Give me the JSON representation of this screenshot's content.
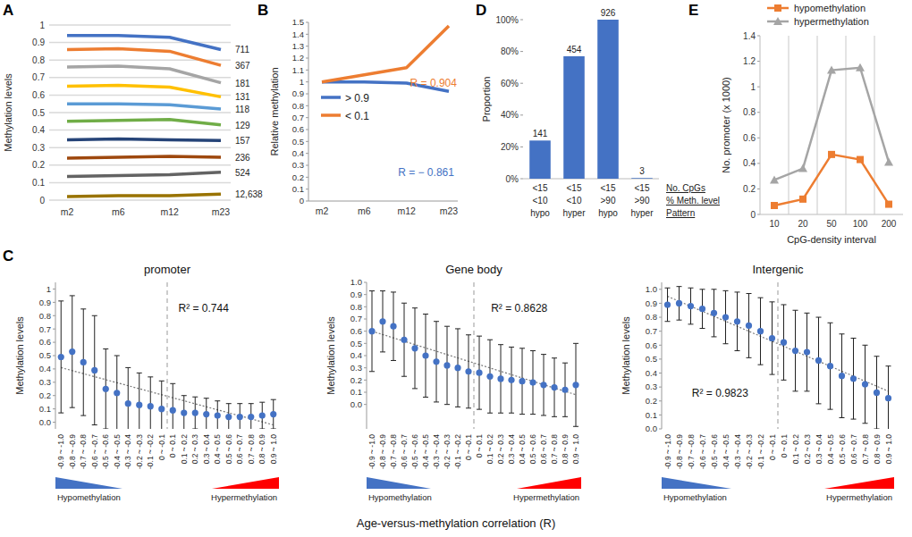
{
  "chart_data": [
    {
      "panel": "A",
      "type": "line",
      "ylabel": "Methylation levels",
      "categories": [
        "m2",
        "m6",
        "m12",
        "m23"
      ],
      "ylim": [
        0,
        1
      ],
      "yticks": [
        0,
        0.1,
        0.2,
        0.3,
        0.4,
        0.5,
        0.6,
        0.7,
        0.8,
        0.9,
        1
      ],
      "grid": true,
      "series": [
        {
          "name": "711",
          "color": "#4472c4",
          "values": [
            0.94,
            0.94,
            0.93,
            0.86
          ]
        },
        {
          "name": "367",
          "color": "#ed7d31",
          "values": [
            0.86,
            0.865,
            0.85,
            0.77
          ]
        },
        {
          "name": "181",
          "color": "#a5a5a5",
          "values": [
            0.76,
            0.765,
            0.75,
            0.67
          ]
        },
        {
          "name": "131",
          "color": "#ffc000",
          "values": [
            0.65,
            0.655,
            0.645,
            0.59
          ]
        },
        {
          "name": "118",
          "color": "#5b9bd5",
          "values": [
            0.55,
            0.55,
            0.545,
            0.52
          ]
        },
        {
          "name": "129",
          "color": "#70ad47",
          "values": [
            0.45,
            0.455,
            0.46,
            0.43
          ]
        },
        {
          "name": "157",
          "color": "#264478",
          "values": [
            0.345,
            0.35,
            0.345,
            0.34
          ]
        },
        {
          "name": "236",
          "color": "#9e480e",
          "values": [
            0.24,
            0.245,
            0.25,
            0.245
          ]
        },
        {
          "name": "524",
          "color": "#636363",
          "values": [
            0.135,
            0.14,
            0.145,
            0.16
          ]
        },
        {
          "name": "12,638",
          "color": "#997300",
          "values": [
            0.02,
            0.025,
            0.025,
            0.035
          ]
        }
      ]
    },
    {
      "panel": "B",
      "type": "line",
      "ylabel": "Relative methylation",
      "categories": [
        "m2",
        "m6",
        "m12",
        "m23"
      ],
      "ylim": [
        0,
        1.5
      ],
      "yticks": [
        0,
        0.1,
        0.2,
        0.3,
        0.4,
        0.5,
        0.6,
        0.7,
        0.8,
        0.9,
        1,
        1.1,
        1.2,
        1.3,
        1.4,
        1.5
      ],
      "legend": "left",
      "series": [
        {
          "name": "> 0.9",
          "color": "#4472c4",
          "values": [
            1,
            1,
            0.99,
            0.92
          ]
        },
        {
          "name": "< 0.1",
          "color": "#ed7d31",
          "values": [
            1,
            1.06,
            1.12,
            1.47
          ]
        }
      ],
      "annotations": [
        {
          "text": "R = 0.904",
          "color": "#ed7d31"
        },
        {
          "text": "R = − 0.861",
          "color": "#4472c4"
        }
      ]
    },
    {
      "panel": "C",
      "type": "errorbar",
      "xlabel": "Age-versus-methylation correlation (R)",
      "subplots": [
        {
          "title": "promoter",
          "ylabel": "Methylation levels",
          "color": "#4472c4",
          "categories": [
            "-0.9 ~ -1.0",
            "-0.8 ~ -0.9",
            "-0.7 ~ -0.8",
            "-0.6 ~ -0.7",
            "-0.5 ~ -0.6",
            "-0.4 ~ -0.5",
            "-0.3 ~ -0.4",
            "-0.2 ~ -0.3",
            "-0.1 ~ -0.2",
            "0 ~ -0.1",
            "0 ~ 0.1",
            "0.1 ~ 0.2",
            "0.2 ~ 0.3",
            "0.3 ~ 0.4",
            "0.4 ~ 0.5",
            "0.5 ~ 0.6",
            "0.6 ~ 0.7",
            "0.7 ~ 0.8",
            "0.8 ~ 0.9",
            "0.9 ~ 1.0"
          ],
          "values": [
            0.49,
            0.53,
            0.45,
            0.39,
            0.25,
            0.22,
            0.14,
            0.13,
            0.12,
            0.1,
            0.09,
            0.07,
            0.07,
            0.06,
            0.05,
            0.04,
            0.04,
            0.04,
            0.05,
            0.06
          ],
          "errors": [
            0.42,
            0.42,
            0.4,
            0.41,
            0.3,
            0.28,
            0.27,
            0.24,
            0.22,
            0.21,
            0.2,
            0.13,
            0.12,
            0.12,
            0.11,
            0.1,
            0.1,
            0.1,
            0.1,
            0.11
          ],
          "trend": [
            0.41,
            -0.02
          ],
          "annotation": "R² = 0.744",
          "ylim": [
            -0.05,
            1.05
          ],
          "yticks": [
            {
              "value": 0,
              "label": "0.0"
            },
            0.1,
            0.2,
            0.3,
            0.4,
            0.5,
            0.6,
            0.7,
            0.8,
            0.9,
            1
          ],
          "direction_labels": [
            "Hypomethylation",
            "Hypermethylation"
          ]
        },
        {
          "title": "Gene body",
          "ylabel": "Methylation levels",
          "color": "#4472c4",
          "categories": [
            "-0.9 ~ -1.0",
            "-0.8 ~ -0.9",
            "-0.7 ~ -0.8",
            "-0.6 ~ -0.7",
            "-0.5 ~ -0.6",
            "-0.4 ~ -0.5",
            "-0.3 ~ -0.4",
            "-0.2 ~ -0.3",
            "-0.1 ~ -0.2",
            "0 ~ -0.1",
            "0 ~ 0.1",
            "0.1 ~ 0.2",
            "0.2 ~ 0.3",
            "0.3 ~ 0.4",
            "0.4 ~ 0.5",
            "0.5 ~ 0.6",
            "0.6 ~ 0.7",
            "0.7 ~ 0.8",
            "0.8 ~ 0.9",
            "0.9 ~ 1.0"
          ],
          "values": [
            0.6,
            0.68,
            0.64,
            0.53,
            0.46,
            0.4,
            0.35,
            0.32,
            0.3,
            0.27,
            0.26,
            0.23,
            0.21,
            0.2,
            0.19,
            0.18,
            0.16,
            0.14,
            0.12,
            0.16
          ],
          "errors": [
            0.33,
            0.25,
            0.28,
            0.3,
            0.33,
            0.34,
            0.33,
            0.32,
            0.32,
            0.3,
            0.3,
            0.3,
            0.28,
            0.27,
            0.27,
            0.26,
            0.25,
            0.24,
            0.22,
            0.34
          ],
          "trend": [
            0.6,
            0.08
          ],
          "annotation": "R² = 0.8628",
          "ylim": [
            -0.2,
            1.0
          ],
          "yticks": [
            {
              "value": 0,
              "label": "0.0"
            },
            0.1,
            0.2,
            0.3,
            0.4,
            0.5,
            0.6,
            0.7,
            0.8,
            0.9,
            {
              "value": 1,
              "label": "1.0"
            }
          ],
          "direction_labels": [
            "Hypomethylation",
            "Hypermethylation"
          ]
        },
        {
          "title": "Intergenic",
          "ylabel": "Methylation levels",
          "color": "#4472c4",
          "categories": [
            "-0.9 ~ -1.0",
            "-0.8 ~ -0.9",
            "-0.7 ~ -0.8",
            "-0.6 ~ -0.7",
            "-0.5 ~ -0.6",
            "-0.4 ~ -0.5",
            "-0.3 ~ -0.4",
            "-0.2 ~ -0.3",
            "-0.1 ~ -0.2",
            "0 ~ -0.1",
            "0 ~ 0.1",
            "0.1 ~ 0.2",
            "0.2 ~ 0.3",
            "0.3 ~ 0.4",
            "0.4 ~ 0.5",
            "0.5 ~ 0.6",
            "0.6 ~ 0.7",
            "0.7 ~ 0.8",
            "0.8 ~ 0.9",
            "0.9 ~ 1.0"
          ],
          "values": [
            0.89,
            0.9,
            0.88,
            0.86,
            0.83,
            0.8,
            0.77,
            0.74,
            0.7,
            0.65,
            0.62,
            0.56,
            0.55,
            0.49,
            0.45,
            0.38,
            0.36,
            0.32,
            0.26,
            0.22
          ],
          "errors": [
            0.12,
            0.12,
            0.13,
            0.14,
            0.17,
            0.19,
            0.21,
            0.23,
            0.24,
            0.26,
            0.27,
            0.29,
            0.28,
            0.31,
            0.31,
            0.3,
            0.29,
            0.28,
            0.26,
            0.23
          ],
          "trend": [
            0.95,
            0.27
          ],
          "annotation": "R² = 0.9823",
          "ylim": [
            0,
            1.05
          ],
          "yticks": [
            {
              "value": 0,
              "label": "0.0"
            },
            0.1,
            0.2,
            0.3,
            0.4,
            0.5,
            0.6,
            0.7,
            0.8,
            0.9,
            {
              "value": 1,
              "label": "1.0"
            }
          ],
          "direction_labels": [
            "Hypomethylation",
            "Hypermethylation"
          ]
        }
      ]
    },
    {
      "panel": "D",
      "type": "bar",
      "ylabel": "Proportion",
      "color": "#4472c4",
      "categories": [
        "<15\n<10\nhypo",
        "<15\n<10\nhyper",
        "<15\n>90\nhypo",
        "<15\n>90\nhyper"
      ],
      "row_labels": [
        "No. CpGs",
        "% Meth. level",
        "Pattern"
      ],
      "values": [
        24,
        77,
        100,
        0.4
      ],
      "counts": [
        141,
        454,
        926,
        3
      ],
      "ylim": [
        0,
        100
      ],
      "yticks": [
        {
          "value": 0,
          "label": "0%"
        },
        {
          "value": 20,
          "label": "20%"
        },
        {
          "value": 40,
          "label": "40%"
        },
        {
          "value": 60,
          "label": "60%"
        },
        {
          "value": 80,
          "label": "80%"
        },
        {
          "value": 100,
          "label": "100%"
        }
      ]
    },
    {
      "panel": "E",
      "type": "line",
      "xlabel": "CpG-density interval",
      "ylabel": "No. promoter (x 1000)",
      "categories": [
        "10",
        "20",
        "50",
        "100",
        "200"
      ],
      "ylim": [
        0,
        1.4
      ],
      "yticks": [
        0,
        0.2,
        0.4,
        0.6,
        0.8,
        1,
        1.2,
        1.4
      ],
      "grid": true,
      "legend": "top-left",
      "series": [
        {
          "name": "hypomethylation",
          "color": "#ed7d31",
          "marker": "square",
          "values": [
            0.07,
            0.12,
            0.47,
            0.43,
            0.08
          ]
        },
        {
          "name": "hypermethylation",
          "color": "#a5a5a5",
          "marker": "triangle",
          "values": [
            0.27,
            0.36,
            1.13,
            1.15,
            0.41
          ]
        }
      ]
    }
  ]
}
